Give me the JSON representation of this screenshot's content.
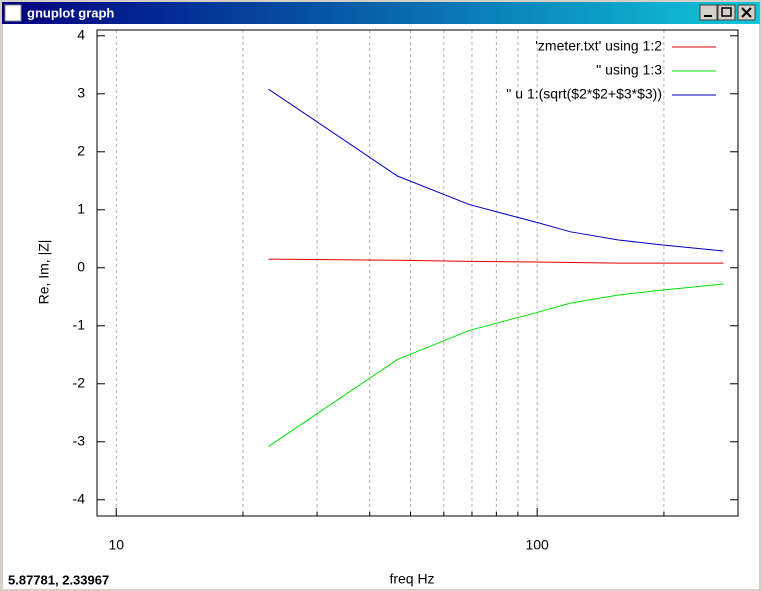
{
  "window": {
    "title": "gnuplot graph",
    "status": "5.87781, 2.33967"
  },
  "chart_data": {
    "type": "line",
    "xlabel": "freq Hz",
    "ylabel": "Re, Im, |Z|",
    "x": [
      23,
      46.6,
      69,
      100,
      120,
      156,
      195,
      277
    ],
    "series": [
      {
        "name": "'zmeter.txt' using 1:2",
        "color": "#e00000",
        "values": [
          0.15,
          0.13,
          0.11,
          0.1,
          0.09,
          0.08,
          0.08,
          0.08
        ]
      },
      {
        "name": "'' using 1:3",
        "color": "#00e000",
        "values": [
          -3.08,
          -1.58,
          -1.08,
          -0.77,
          -0.61,
          -0.47,
          -0.39,
          -0.28
        ]
      },
      {
        "name": "'' u 1:(sqrt($2*$2+$3*$3))",
        "color": "#0000c0",
        "values": [
          3.08,
          1.58,
          1.09,
          0.78,
          0.62,
          0.48,
          0.4,
          0.29
        ]
      }
    ],
    "xlog": true,
    "xlim": [
      9,
      300
    ],
    "xticks": [
      10,
      100
    ],
    "xminorticks": [
      20,
      30,
      40,
      50,
      60,
      70,
      80,
      90,
      200
    ],
    "ylim": [
      -4.28,
      4.1
    ],
    "yticks": [
      -4,
      -3,
      -2,
      -1,
      0,
      1,
      2,
      3,
      4
    ],
    "grid": true,
    "legend": "top-right"
  }
}
